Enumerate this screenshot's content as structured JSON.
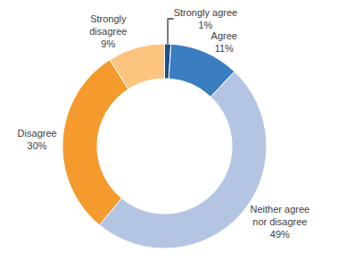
{
  "chart_data": {
    "type": "pie",
    "categories": [
      "Strongly agree",
      "Agree",
      "Neither agree nor disagree",
      "Disagree",
      "Strongly disagree"
    ],
    "values": [
      1,
      11,
      49,
      30,
      9
    ],
    "value_labels": [
      "1%",
      "11%",
      "49%",
      "30%",
      "9%"
    ],
    "colors": [
      "#1f4e8c",
      "#3a7dc0",
      "#b4c5e4",
      "#f59a2c",
      "#fcc47e"
    ],
    "data_labels": true,
    "legend": "none"
  }
}
